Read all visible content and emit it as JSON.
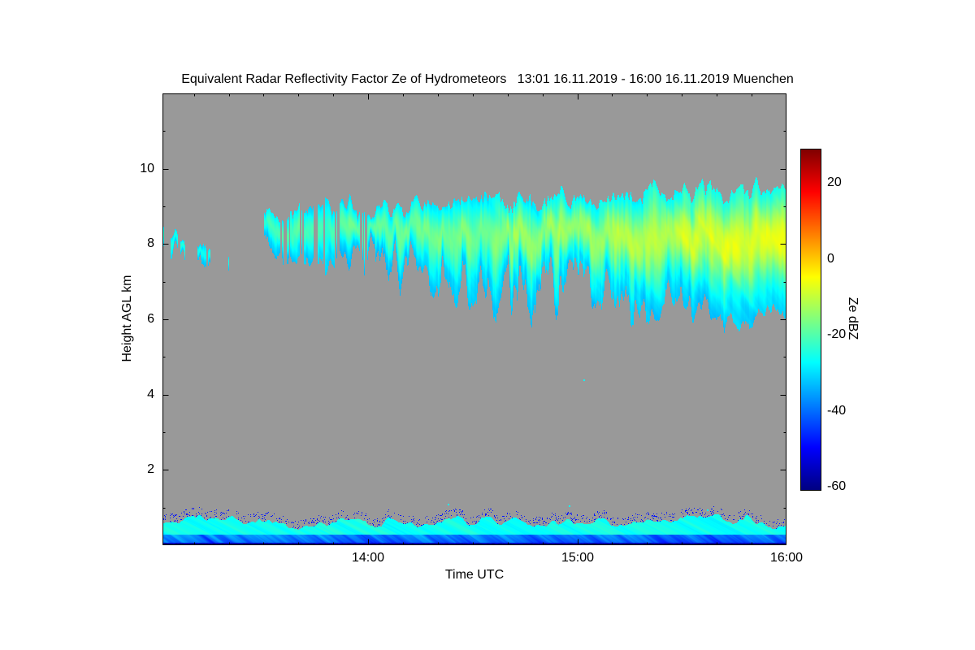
{
  "chart_data": {
    "type": "heatmap",
    "title": "Equivalent Radar Reflectivity Factor Ze of Hydrometeors   13:01 16.11.2019 - 16:00 16.11.2019 Muenchen",
    "xlabel": "Time UTC",
    "ylabel": "Height AGL km",
    "site": "Muenchen",
    "time_start": "13:01 16.11.2019",
    "time_end": "16:00 16.11.2019",
    "x_range_hours": [
      13.0167,
      16.0
    ],
    "x_ticks": [
      {
        "hour": 14,
        "label": "14:00"
      },
      {
        "hour": 15,
        "label": "15:00"
      },
      {
        "hour": 16,
        "label": "16:00"
      }
    ],
    "x_minor_tick_minutes": 10,
    "y_range_km": [
      0,
      12
    ],
    "y_ticks": [
      10,
      8,
      6,
      4,
      2
    ],
    "y_minor_km": 1,
    "grid": false,
    "no_signal_color": "#999999",
    "colorbar": {
      "label": "Ze dBZ",
      "min_dbz": -61,
      "max_dbz": 29,
      "ticks": [
        20,
        0,
        -20,
        -40,
        -60
      ],
      "colormap": "jet"
    },
    "features": {
      "cirrus_early_patch": {
        "t_start": 13.0,
        "t_end": 13.37,
        "top_km": 8.45,
        "descent_km": 0.9,
        "max_depth_km": 0.7,
        "dbz_core": -24,
        "dbz_edge": -32
      },
      "main_cloud_layer": {
        "t_start": 13.5,
        "t_end": 16.0,
        "top_km_start": 8.85,
        "top_km_end": 9.5,
        "base_km_start": 8.05,
        "base_km_end": 6.05,
        "dbz_edge": -33,
        "dbz_core_start": -22,
        "dbz_core_end": -7,
        "fall_streak_km": 1.1
      },
      "boundary_layer": {
        "top_km_mean": 0.62,
        "top_km_amp": 0.25,
        "dbz_main": -26,
        "dbz_low": -44,
        "dbz_surface": -57,
        "surface_km": 0.07
      },
      "isolated_specks": [
        {
          "t": 15.03,
          "h_km": 4.4
        },
        {
          "t": 14.38,
          "h_km": 1.1
        },
        {
          "t": 14.96,
          "h_km": 1.05
        },
        {
          "t": 15.62,
          "h_km": 0.95
        }
      ]
    }
  }
}
